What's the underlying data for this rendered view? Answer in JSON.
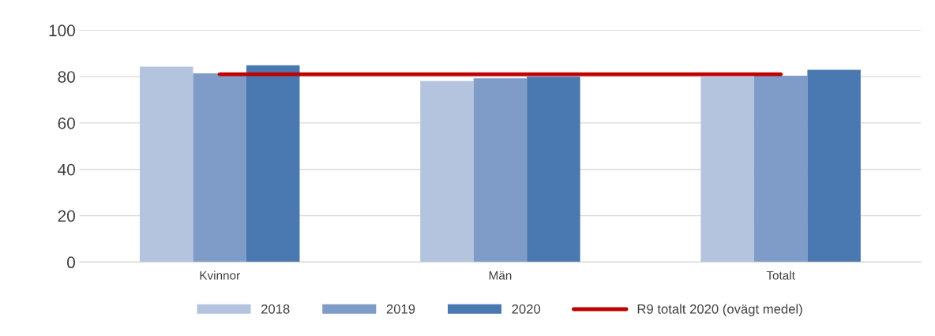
{
  "chart_data": {
    "type": "bar",
    "categories": [
      "Kvinnor",
      "Män",
      "Totalt"
    ],
    "series": [
      {
        "name": "2018",
        "color": "#b4c3de",
        "values": [
          84.3,
          78.1,
          80.0
        ]
      },
      {
        "name": "2019",
        "color": "#7f9cc8",
        "values": [
          81.4,
          79.3,
          80.4
        ]
      },
      {
        "name": "2020",
        "color": "#4a78b0",
        "values": [
          84.9,
          80.0,
          82.9
        ]
      },
      {
        "name": "R9 totalt 2020 (ovägt medel)",
        "type": "line",
        "color": "#c00000",
        "values": [
          81.0,
          81.0,
          81.0
        ]
      }
    ],
    "ylim": [
      0,
      100
    ],
    "yticks": [
      0,
      20,
      40,
      60,
      80,
      100
    ],
    "grid": "y",
    "legend": "bottom"
  }
}
